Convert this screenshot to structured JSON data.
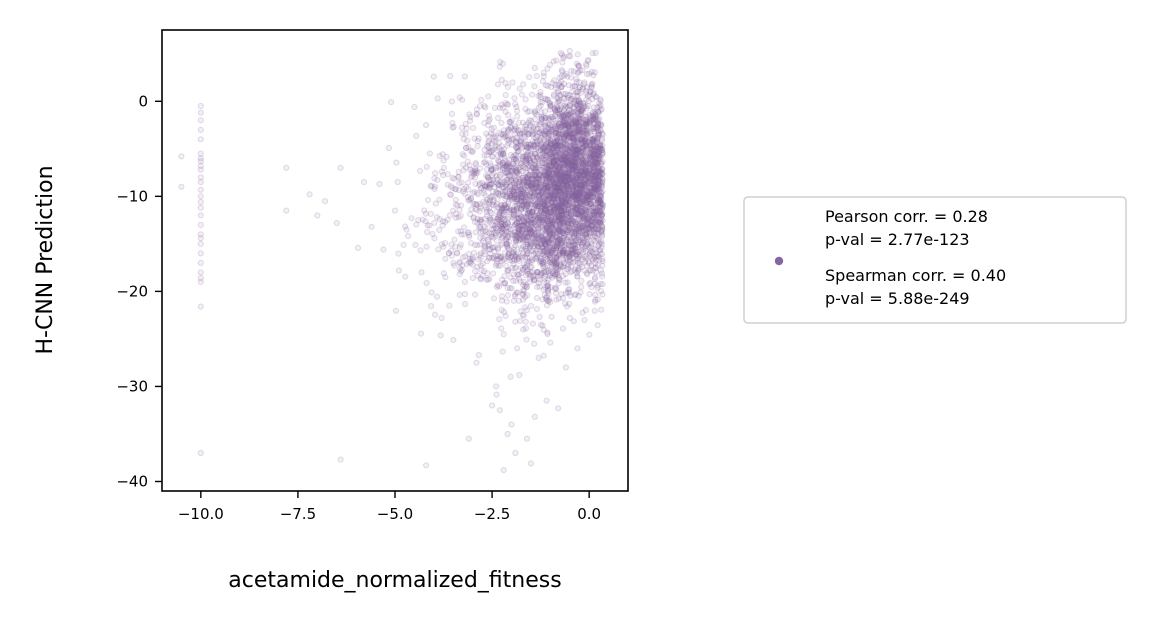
{
  "chart_data": {
    "type": "scatter",
    "title": "",
    "xlabel": "acetamide_normalized_fitness",
    "ylabel": "H-CNN Prediction",
    "xlim": [
      -11.0,
      1.0
    ],
    "ylim": [
      -41.0,
      7.5
    ],
    "xticks": [
      -10.0,
      -7.5,
      -5.0,
      -2.5,
      0.0
    ],
    "xtick_labels": [
      "−10.0",
      "−7.5",
      "−5.0",
      "−2.5",
      "0.0"
    ],
    "yticks": [
      0,
      -10,
      -20,
      -30,
      -40
    ],
    "ytick_labels": [
      "0",
      "−10",
      "−20",
      "−30",
      "−40"
    ],
    "grid": false,
    "legend_placement": "outside-right",
    "marker_color": "#8566A0",
    "series": [
      {
        "legend_lines": [
          "Pearson corr. = 0.28",
          "p-val = 2.77e-123",
          "Spearman corr. = 0.40",
          "p-val = 5.88e-249"
        ],
        "points": [
          [
            -10.0,
            -0.5
          ],
          [
            -10.0,
            -1.2
          ],
          [
            -10.0,
            -2.0
          ],
          [
            -10.0,
            -3.0
          ],
          [
            -10.0,
            -4.0
          ],
          [
            -10.0,
            -5.5
          ],
          [
            -10.0,
            -6.0
          ],
          [
            -10.0,
            -6.3
          ],
          [
            -10.0,
            -6.8
          ],
          [
            -10.0,
            -7.2
          ],
          [
            -10.0,
            -8.0
          ],
          [
            -10.0,
            -8.5
          ],
          [
            -10.0,
            -9.3
          ],
          [
            -10.0,
            -10.0
          ],
          [
            -10.0,
            -10.6
          ],
          [
            -10.0,
            -11.2
          ],
          [
            -10.0,
            -12.0
          ],
          [
            -10.0,
            -13.0
          ],
          [
            -10.0,
            -14.0
          ],
          [
            -10.0,
            -14.4
          ],
          [
            -10.0,
            -15.0
          ],
          [
            -10.0,
            -16.0
          ],
          [
            -10.0,
            -17.0
          ],
          [
            -10.0,
            -18.0
          ],
          [
            -10.0,
            -18.6
          ],
          [
            -10.0,
            -19.0
          ],
          [
            -10.0,
            -21.6
          ],
          [
            -10.0,
            -37.0
          ],
          [
            -10.5,
            -5.8
          ],
          [
            -10.5,
            -9.0
          ],
          [
            -7.8,
            -7.0
          ],
          [
            -7.8,
            -11.5
          ],
          [
            -7.2,
            -9.8
          ],
          [
            -7.0,
            -12.0
          ],
          [
            -6.8,
            -10.5
          ],
          [
            -6.5,
            -12.8
          ],
          [
            -6.4,
            -7.0
          ],
          [
            -6.4,
            -37.7
          ],
          [
            -5.8,
            -8.5
          ],
          [
            -5.6,
            -13.2
          ],
          [
            -5.4,
            -8.7
          ],
          [
            -5.1,
            -0.1
          ],
          [
            -5.3,
            -15.6
          ],
          [
            -5.0,
            -11.5
          ],
          [
            -4.9,
            -17.8
          ],
          [
            -4.7,
            -13.5
          ],
          [
            -4.5,
            -0.6
          ],
          [
            -4.4,
            -12.5
          ],
          [
            -4.2,
            -38.3
          ],
          [
            -4.2,
            -2.5
          ],
          [
            -4.0,
            2.6
          ],
          [
            -3.9,
            0.3
          ],
          [
            -3.8,
            -22.8
          ],
          [
            -3.6,
            -21.5
          ],
          [
            -3.5,
            -25.1
          ],
          [
            -3.4,
            -16.0
          ],
          [
            -3.2,
            -19.0
          ],
          [
            -3.1,
            -35.5
          ],
          [
            -2.9,
            -27.5
          ],
          [
            -2.7,
            -0.5
          ],
          [
            -2.6,
            0.5
          ],
          [
            -2.5,
            -32.0
          ],
          [
            -2.4,
            -30.0
          ],
          [
            -2.3,
            -32.5
          ],
          [
            -2.2,
            -38.8
          ],
          [
            -2.1,
            -35.0
          ],
          [
            -2.0,
            -34.0
          ],
          [
            -1.9,
            -37.0
          ],
          [
            -1.8,
            -28.8
          ],
          [
            -1.7,
            -24.0
          ],
          [
            -1.6,
            -35.5
          ],
          [
            -1.5,
            -38.1
          ],
          [
            -1.4,
            -33.2
          ],
          [
            -1.3,
            -27.0
          ],
          [
            -1.2,
            -23.6
          ],
          [
            -1.1,
            -31.5
          ],
          [
            -1.0,
            -25.4
          ],
          [
            -0.8,
            -32.3
          ],
          [
            -0.6,
            -28.0
          ],
          [
            -0.5,
            -22.8
          ],
          [
            -0.3,
            -26.0
          ],
          [
            -0.2,
            -18.9
          ],
          [
            -1.7,
            1.8
          ],
          [
            -1.4,
            3.5
          ],
          [
            -0.7,
            4.9
          ],
          [
            -0.5,
            5.3
          ],
          [
            -0.3,
            3.0
          ],
          [
            -0.9,
            2.2
          ],
          [
            -2.2,
            -24.5
          ],
          [
            -1.9,
            -23.2
          ]
        ],
        "dense_regions": [
          {
            "x_center": -1.0,
            "x_spread": 0.85,
            "y_center": -11.0,
            "y_spread": 4.8,
            "count": 2600
          },
          {
            "x_center": -0.4,
            "x_spread": 0.45,
            "y_center": -6.0,
            "y_spread": 4.2,
            "count": 1400
          },
          {
            "x_center": -2.2,
            "x_spread": 0.9,
            "y_center": -9.0,
            "y_spread": 5.0,
            "count": 450
          },
          {
            "x_center": -3.3,
            "x_spread": 0.9,
            "y_center": -12.0,
            "y_spread": 5.0,
            "count": 140
          }
        ]
      }
    ]
  }
}
